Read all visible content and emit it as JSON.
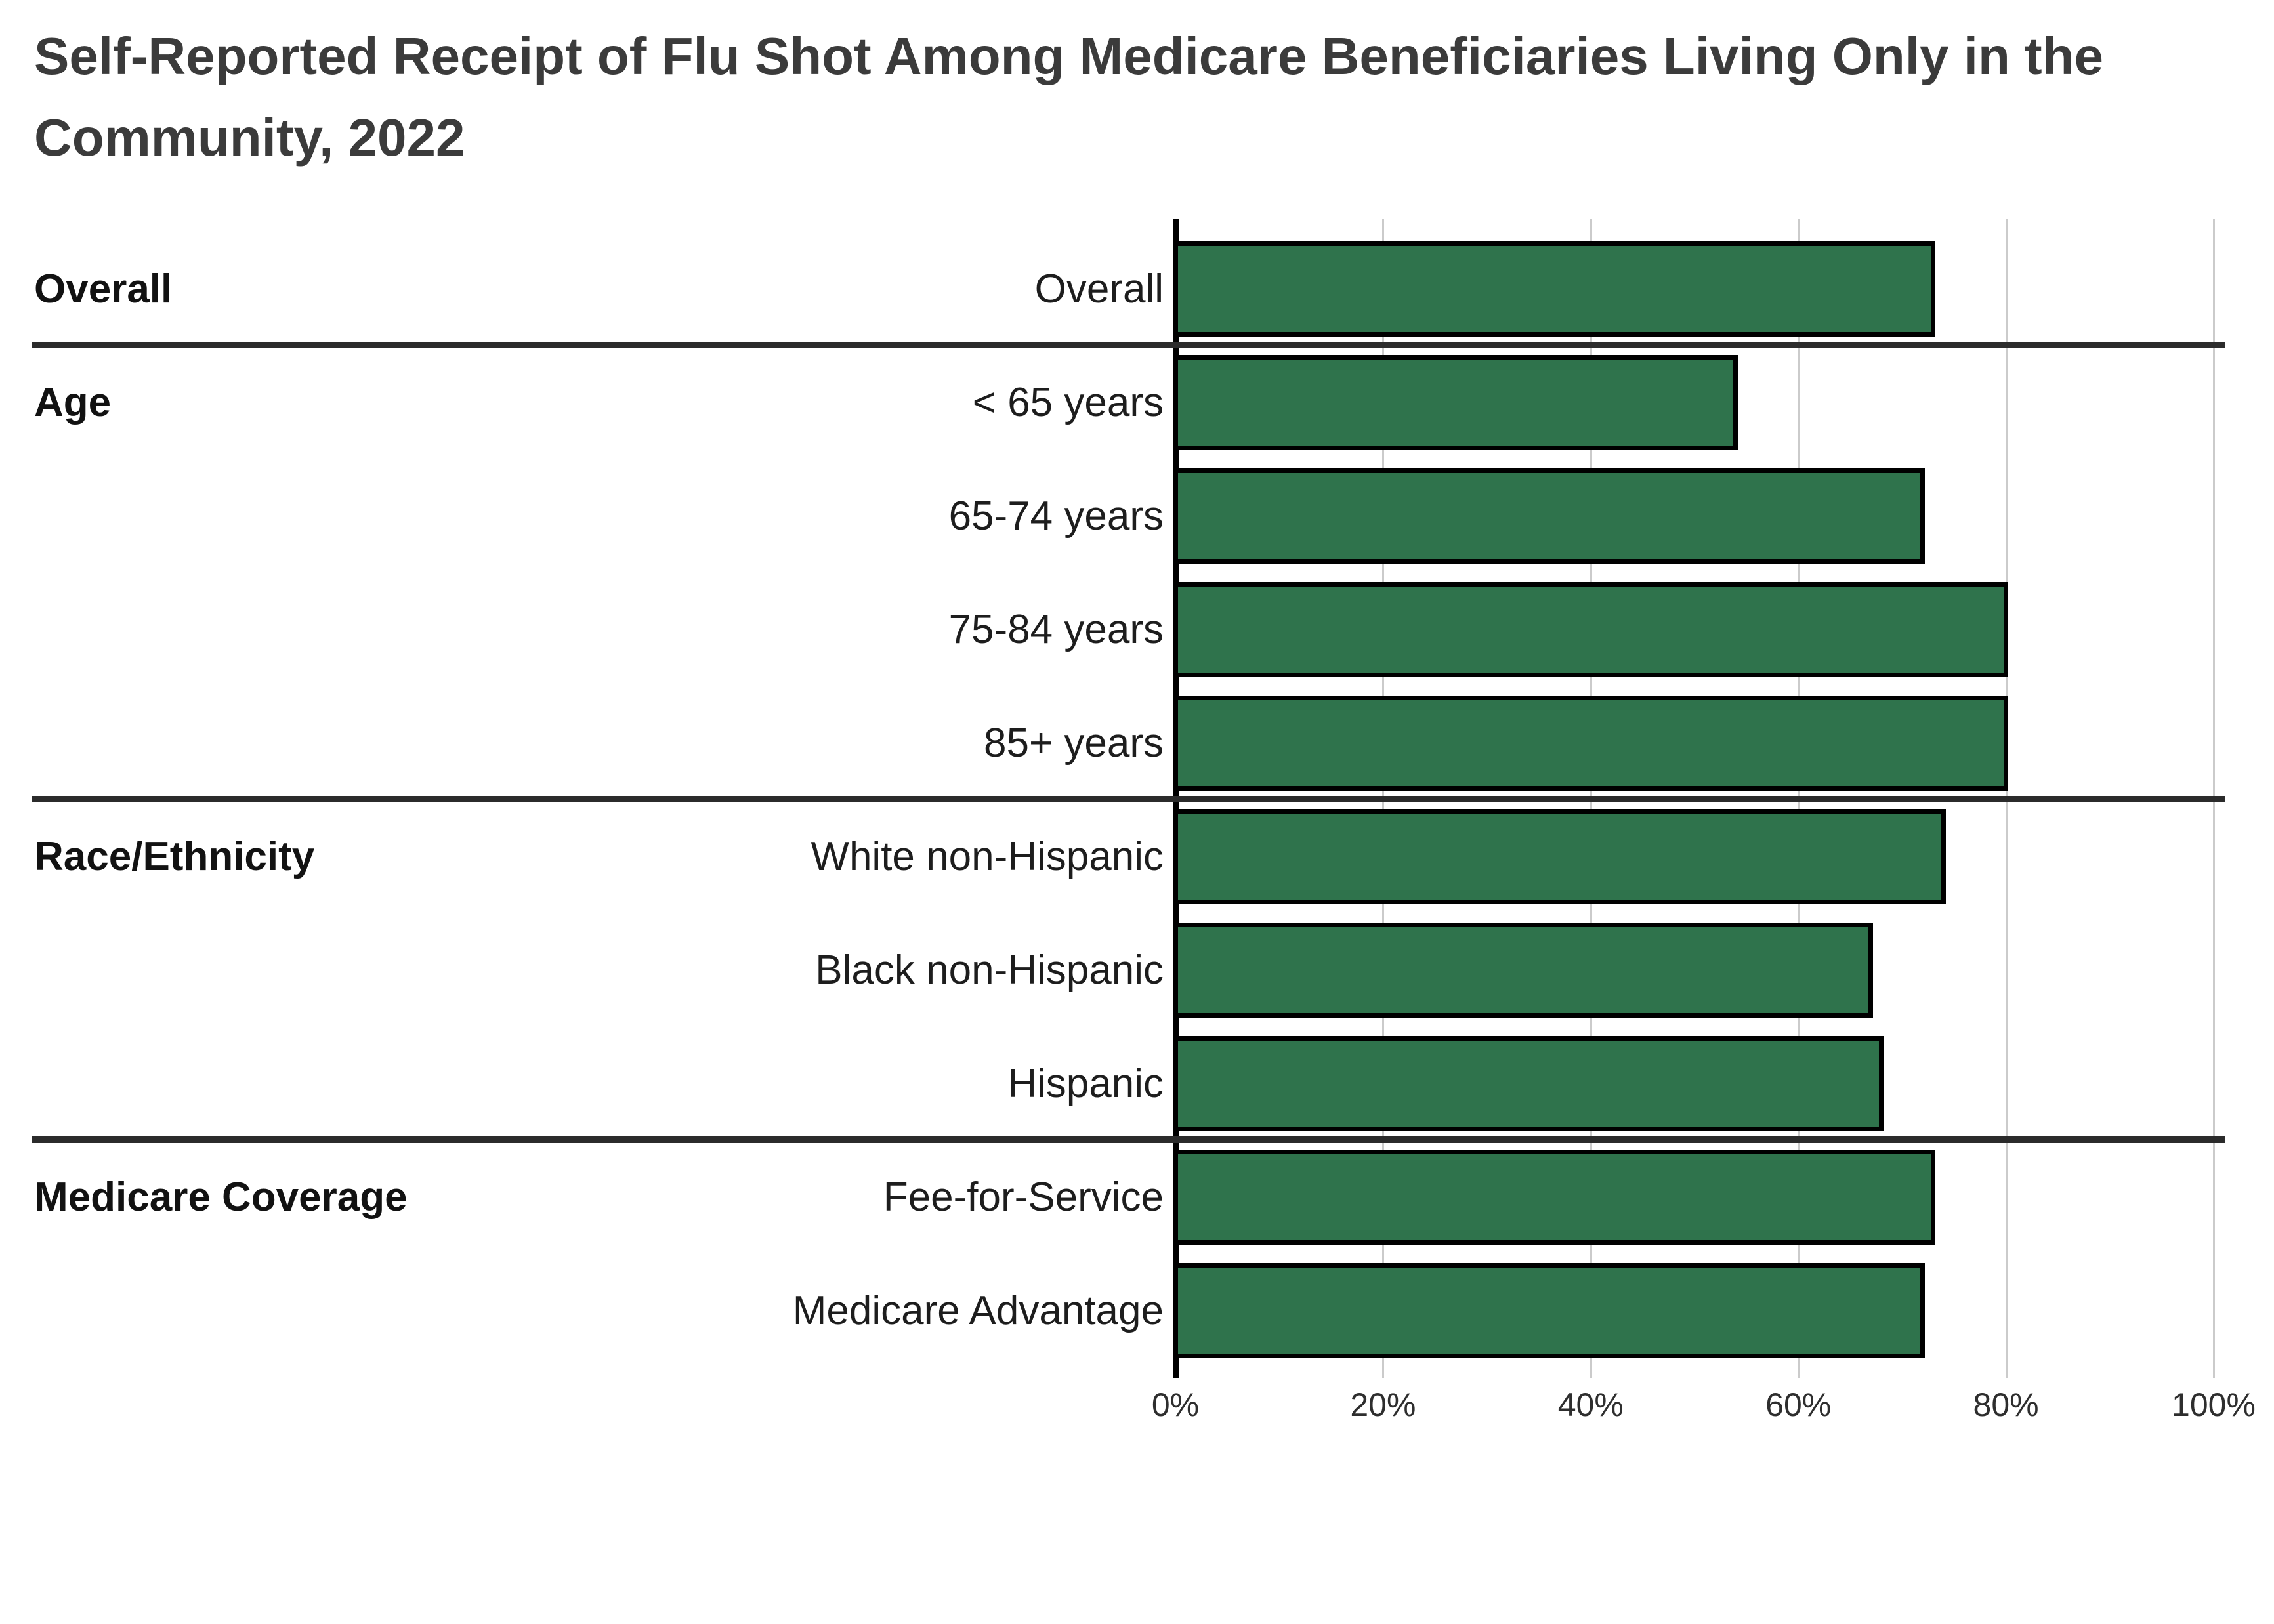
{
  "chart_data": {
    "type": "bar",
    "orientation": "horizontal",
    "title": "Self-Reported Receipt of Flu Shot Among Medicare Beneficiaries Living Only in the Community, 2022",
    "xlabel": "",
    "ylabel": "",
    "unit": "%",
    "x_axis": {
      "min": 0,
      "max": 100,
      "tick_values": [
        0,
        20,
        40,
        60,
        80,
        100
      ],
      "tick_labels": [
        "0%",
        "20%",
        "40%",
        "60%",
        "80%",
        "100%"
      ],
      "grid": true
    },
    "legend": "none",
    "groups": [
      {
        "label": "Overall",
        "rows": [
          {
            "label": "Overall",
            "value": 73
          }
        ]
      },
      {
        "label": "Age",
        "rows": [
          {
            "label": "< 65 years",
            "value": 54
          },
          {
            "label": "65-74 years",
            "value": 72
          },
          {
            "label": "75-84 years",
            "value": 80
          },
          {
            "label": "85+ years",
            "value": 80
          }
        ]
      },
      {
        "label": "Race/Ethnicity",
        "rows": [
          {
            "label": "White non-Hispanic",
            "value": 74
          },
          {
            "label": "Black non-Hispanic",
            "value": 67
          },
          {
            "label": "Hispanic",
            "value": 68
          }
        ]
      },
      {
        "label": "Medicare Coverage",
        "rows": [
          {
            "label": "Fee-for-Service",
            "value": 73
          },
          {
            "label": "Medicare Advantage",
            "value": 72
          }
        ]
      }
    ]
  },
  "colors": {
    "bar_fill": "#2F734C",
    "bar_border": "#000000",
    "gridline": "#CBCBCB",
    "axis_line": "#000000",
    "section_divider": "#2B2B2B",
    "title_text": "#3B3B3B",
    "row_label_text": "#1D1D1D",
    "group_label_text": "#121212",
    "tick_label_text": "#2E2E2E",
    "background": "#FFFFFF"
  }
}
